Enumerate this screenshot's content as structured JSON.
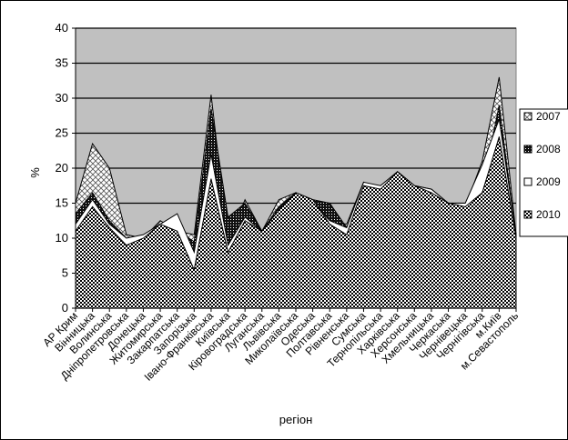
{
  "chart_data": {
    "type": "area",
    "xlabel": "регіон",
    "ylabel": "%",
    "ylim": [
      0,
      40
    ],
    "ytick_step": 5,
    "grid": "horizontal",
    "legend_position": "right",
    "categories": [
      "АР Крим",
      "Вінницька",
      "Волинська",
      "Дніпропетровська",
      "Донецька",
      "Житомирська",
      "Закарпатська",
      "Запорізька",
      "Івано-Франківська",
      "Київська",
      "Кіровоградська",
      "Луганська",
      "Львівська",
      "Миколаївська",
      "Одеська",
      "Полтавська",
      "Рівненська",
      "Сумська",
      "Тернопільська",
      "Харківська",
      "Херсонська",
      "Хмельницька",
      "Черкаська",
      "Чернівецька",
      "Чернігівська",
      "м.Київ",
      "м.Севастополь"
    ],
    "series": [
      {
        "name": "2007",
        "values": [
          15.0,
          23.5,
          20.0,
          10.5,
          10.0,
          12.5,
          11.0,
          10.5,
          30.5,
          9.5,
          15.5,
          11.0,
          15.5,
          16.5,
          15.5,
          12.5,
          12.0,
          18.0,
          16.5,
          19.5,
          17.5,
          16.5,
          15.0,
          14.5,
          21.0,
          33.0,
          10.5
        ]
      },
      {
        "name": "2008",
        "values": [
          13.5,
          16.5,
          12.5,
          10.0,
          10.0,
          12.0,
          11.0,
          9.5,
          28.5,
          13.0,
          15.0,
          11.0,
          14.5,
          16.5,
          15.5,
          15.0,
          11.5,
          17.5,
          17.5,
          19.5,
          17.5,
          17.0,
          15.0,
          14.0,
          17.0,
          29.0,
          10.0
        ]
      },
      {
        "name": "2009",
        "values": [
          12.0,
          15.5,
          12.0,
          10.0,
          10.5,
          12.0,
          13.5,
          8.0,
          22.0,
          9.0,
          13.0,
          11.0,
          14.0,
          16.5,
          15.0,
          12.5,
          11.5,
          18.0,
          17.5,
          19.5,
          17.5,
          17.0,
          15.0,
          15.0,
          20.5,
          27.0,
          10.5
        ]
      },
      {
        "name": "2010",
        "values": [
          11.0,
          14.5,
          11.5,
          9.0,
          10.0,
          12.0,
          11.0,
          5.5,
          18.5,
          8.0,
          12.5,
          11.0,
          14.0,
          16.5,
          15.5,
          12.0,
          10.5,
          17.5,
          17.0,
          19.5,
          17.5,
          16.5,
          15.0,
          14.5,
          16.5,
          24.5,
          10.0
        ]
      }
    ]
  }
}
